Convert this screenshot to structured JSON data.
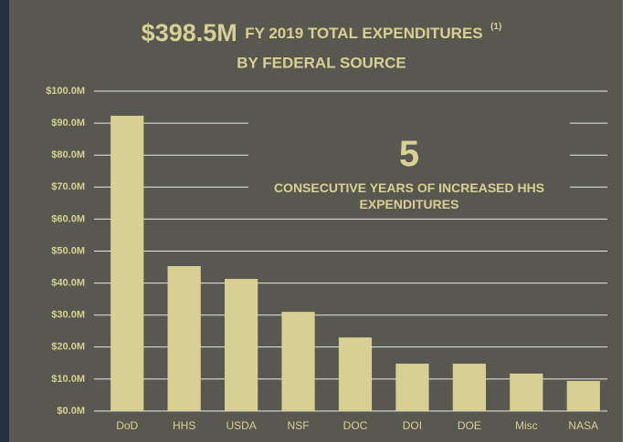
{
  "chart_data": {
    "type": "bar",
    "title_amount": "$398.5M",
    "title_text": "FY 2019 TOTAL EXPENDITURES",
    "title_note": "(1)",
    "title_line2": "BY FEDERAL SOURCE",
    "annotation": {
      "number": "5",
      "text": "CONSECUTIVE YEARS OF INCREASED HHS EXPENDITURES"
    },
    "categories": [
      "DoD",
      "HHS",
      "USDA",
      "NSF",
      "DOC",
      "DOI",
      "DOE",
      "Misc",
      "NASA"
    ],
    "values": [
      92.3,
      45.3,
      41.3,
      31,
      23,
      14.8,
      14.8,
      11.7,
      9.4
    ],
    "color": "#d6d193",
    "ylim": [
      0,
      100
    ],
    "yticks": [
      {
        "value": 0,
        "label": "$0.0M"
      },
      {
        "value": 10,
        "label": "$10.0M"
      },
      {
        "value": 20,
        "label": "$20.0M"
      },
      {
        "value": 30,
        "label": "$30.0M"
      },
      {
        "value": 40,
        "label": "$40.0M"
      },
      {
        "value": 50,
        "label": "$50.0M"
      },
      {
        "value": 60,
        "label": "$60.0M"
      },
      {
        "value": 70,
        "label": "$70.0M"
      },
      {
        "value": 80,
        "label": "$80.0M"
      },
      {
        "value": 90,
        "label": "$90.0M"
      },
      {
        "value": 100,
        "label": "$100.0M"
      }
    ],
    "grid": true
  }
}
